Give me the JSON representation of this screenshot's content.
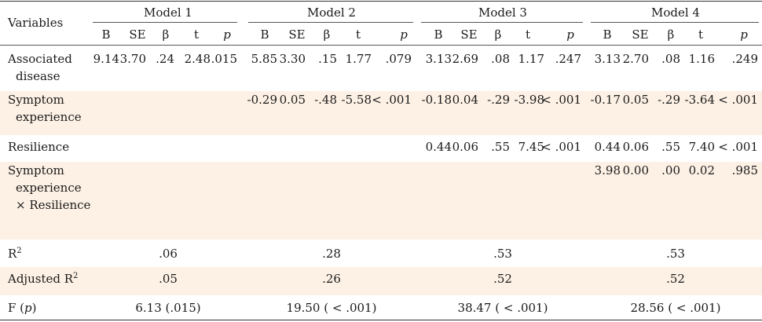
{
  "table": {
    "corner_label": "Variables",
    "models": [
      "Model 1",
      "Model 2",
      "Model 3",
      "Model 4"
    ],
    "stat_headers": [
      "B",
      "SE",
      "β",
      "t",
      "p"
    ],
    "rows": [
      {
        "label": [
          "Associated",
          "disease"
        ],
        "values": [
          [
            "9.14",
            "3.70",
            ".24",
            "2.48",
            ".015"
          ],
          [
            "5.85",
            "3.30",
            ".15",
            "1.77",
            ".079"
          ],
          [
            "3.13",
            "2.69",
            ".08",
            "1.17",
            ".247"
          ],
          [
            "3.13",
            "2.70",
            ".08",
            "1.16",
            ".249"
          ]
        ]
      },
      {
        "label": [
          "Symptom",
          "experience"
        ],
        "values": [
          [
            "",
            "",
            "",
            "",
            ""
          ],
          [
            "-0.29",
            "0.05",
            "-.48",
            "-5.58",
            "< .001"
          ],
          [
            "-0.18",
            "0.04",
            "-.29",
            "-3.98",
            "< .001"
          ],
          [
            "-0.17",
            "0.05",
            "-.29",
            "-3.64",
            "< .001"
          ]
        ]
      },
      {
        "label": [
          "Resilience"
        ],
        "values": [
          [
            "",
            "",
            "",
            "",
            ""
          ],
          [
            "",
            "",
            "",
            "",
            ""
          ],
          [
            "0.44",
            "0.06",
            ".55",
            "7.45",
            "< .001"
          ],
          [
            "0.44",
            "0.06",
            ".55",
            "7.40",
            "< .001"
          ]
        ]
      },
      {
        "label": [
          "Symptom",
          "experience",
          "× Resilience"
        ],
        "values": [
          [
            "",
            "",
            "",
            "",
            ""
          ],
          [
            "",
            "",
            "",
            "",
            ""
          ],
          [
            "",
            "",
            "",
            "",
            ""
          ],
          [
            "3.98",
            "0.00",
            ".00",
            "0.02",
            ".985"
          ]
        ]
      }
    ],
    "summary": [
      {
        "label": "R",
        "sup": "2",
        "values": [
          ".06",
          ".28",
          ".53",
          ".53"
        ]
      },
      {
        "label": "Adjusted R",
        "sup": "2",
        "values": [
          ".05",
          ".26",
          ".52",
          ".52"
        ]
      },
      {
        "label": "F (",
        "label_italic": "p",
        "label_end": ")",
        "values": [
          "6.13 (.015)",
          "19.50 ( < .001)",
          "38.47 ( < .001)",
          "28.56 ( < .001)"
        ]
      }
    ]
  }
}
